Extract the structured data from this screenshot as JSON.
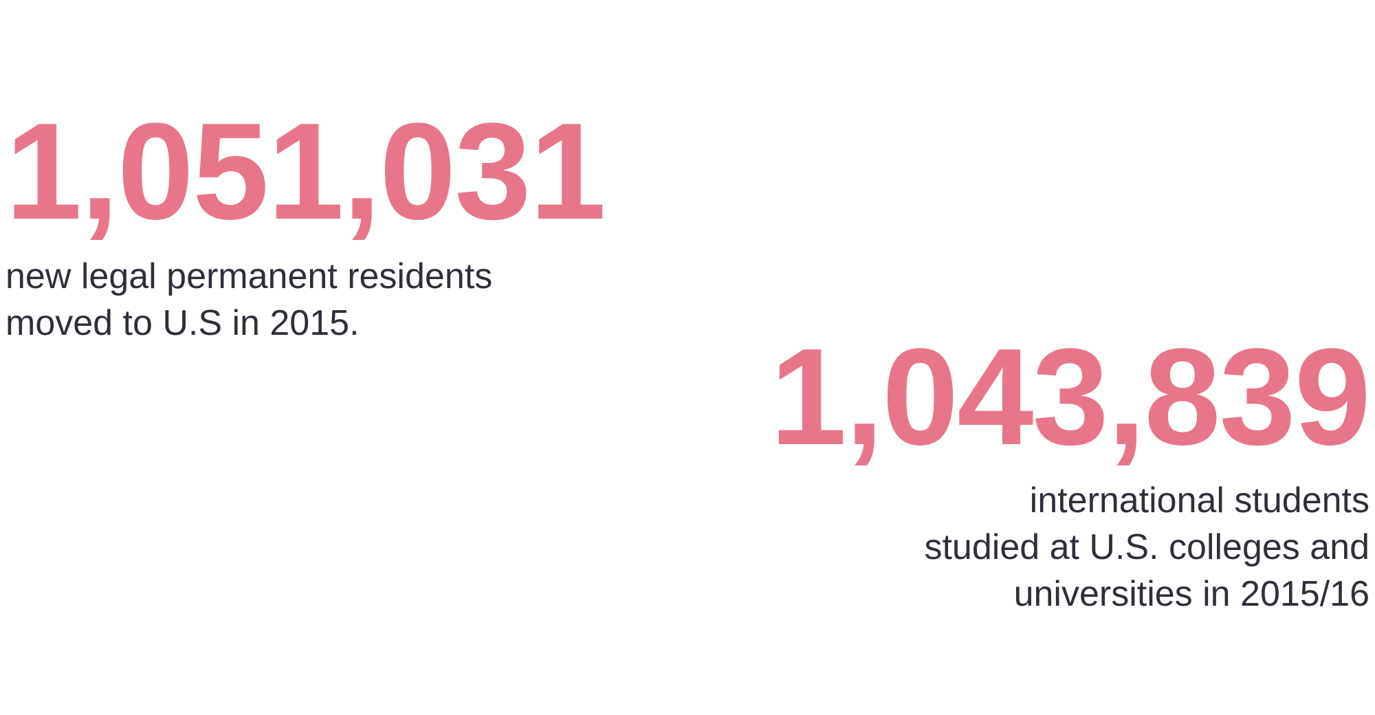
{
  "colors": {
    "accent": "#e8768a",
    "text": "#2f2f3b",
    "background": "#ffffff"
  },
  "stats": [
    {
      "number": "1,051,031",
      "caption_lines": [
        "new legal permanent residents",
        "moved to U.S in 2015."
      ]
    },
    {
      "number": "1,043,839",
      "caption_lines": [
        "international students",
        "studied at U.S. colleges and",
        "universities in 2015/16"
      ]
    }
  ]
}
